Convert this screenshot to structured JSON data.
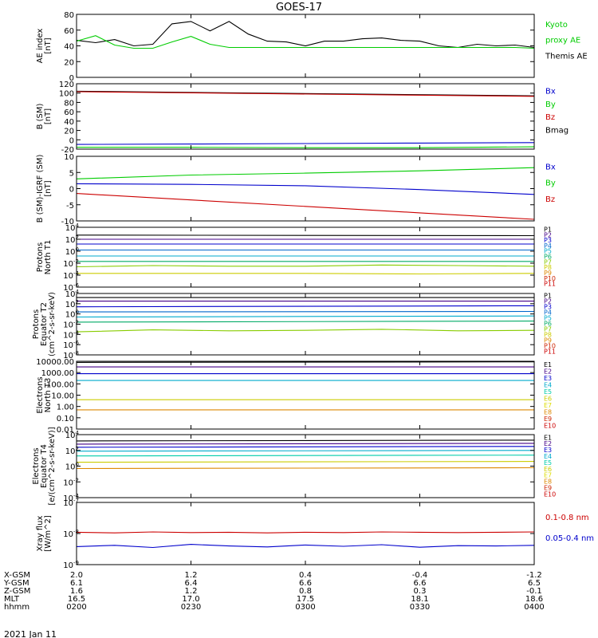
{
  "title": "GOES-17",
  "date_label": "2021 Jan 11",
  "ephemeris": {
    "row_labels": [
      "X-GSM",
      "Y-GSM",
      "Z-GSM",
      "MLT",
      "hhmm"
    ],
    "columns": [
      {
        "time": "02:00",
        "values": [
          "2.0",
          "6.1",
          "1.6",
          "16.5",
          "0200"
        ]
      },
      {
        "time": "02:30",
        "values": [
          "1.2",
          "6.4",
          "1.2",
          "17.0",
          "0230"
        ]
      },
      {
        "time": "03:00",
        "values": [
          "0.4",
          "6.6",
          "0.8",
          "17.5",
          "0300"
        ]
      },
      {
        "time": "03:30",
        "values": [
          "-0.4",
          "6.6",
          "0.3",
          "18.1",
          "0330"
        ]
      },
      {
        "time": "04:00",
        "values": [
          "-1.2",
          "6.5",
          "-0.1",
          "18.6",
          "0400"
        ]
      }
    ]
  },
  "colors": {
    "black": "#000000",
    "green": "#00cc00",
    "blue": "#0000cc",
    "red": "#cc0000",
    "orange": "#dd8800",
    "yellow": "#cccc00"
  },
  "chart_data": [
    {
      "type": "line",
      "ylabel": [
        "AE index",
        "[nT]"
      ],
      "ylim": [
        0,
        80
      ],
      "yticks": [
        "0",
        "20",
        "40",
        "60",
        "80"
      ],
      "x_range": [
        "02:00",
        "04:00"
      ],
      "legend": [
        {
          "name": "Kyoto",
          "color": "#00cc00"
        },
        {
          "name": "proxy AE",
          "color": "#00cc00"
        },
        {
          "name": "Themis AE",
          "color": "#000000"
        }
      ],
      "series": [
        {
          "name": "Themis AE",
          "color": "#000000",
          "t": [
            "02:00",
            "02:05",
            "02:10",
            "02:15",
            "02:20",
            "02:25",
            "02:30",
            "02:35",
            "02:40",
            "02:45",
            "02:50",
            "02:55",
            "03:00",
            "03:05",
            "03:10",
            "03:15",
            "03:20",
            "03:25",
            "03:30",
            "03:35",
            "03:40",
            "03:45",
            "03:50",
            "03:55",
            "04:00"
          ],
          "y": [
            47,
            44,
            48,
            40,
            42,
            68,
            71,
            59,
            71,
            55,
            46,
            45,
            40,
            46,
            46,
            49,
            50,
            47,
            46,
            40,
            38,
            42,
            40,
            41,
            38
          ]
        },
        {
          "name": "Kyoto proxy AE",
          "color": "#00cc00",
          "t": [
            "02:00",
            "02:05",
            "02:10",
            "02:15",
            "02:20",
            "02:25",
            "02:30",
            "02:35",
            "02:40",
            "02:45",
            "02:50",
            "02:55",
            "03:00",
            "03:05",
            "03:10",
            "03:15",
            "03:20",
            "03:25",
            "03:30",
            "03:35",
            "03:40",
            "03:45",
            "03:50",
            "03:55",
            "04:00"
          ],
          "y": [
            46,
            53,
            41,
            37,
            37,
            45,
            52,
            42,
            38,
            38,
            38,
            38,
            38,
            38,
            38,
            38,
            38,
            38,
            38,
            38,
            38,
            38,
            38,
            38,
            37
          ]
        }
      ]
    },
    {
      "type": "line",
      "ylabel": [
        "B (SM)",
        "[nT]"
      ],
      "ylim": [
        -20,
        120
      ],
      "yticks": [
        "-20",
        "0",
        "20",
        "40",
        "60",
        "80",
        "100",
        "120"
      ],
      "legend": [
        {
          "name": "Bx",
          "color": "#0000cc"
        },
        {
          "name": "By",
          "color": "#00cc00"
        },
        {
          "name": "Bz",
          "color": "#cc0000"
        },
        {
          "name": "Bmag",
          "color": "#000000"
        }
      ],
      "series": [
        {
          "name": "Bmag",
          "color": "#000000",
          "t": [
            "02:00",
            "04:00"
          ],
          "y": [
            104,
            94
          ]
        },
        {
          "name": "Bz",
          "color": "#cc0000",
          "t": [
            "02:00",
            "04:00"
          ],
          "y": [
            103,
            93
          ]
        },
        {
          "name": "Bx",
          "color": "#0000cc",
          "t": [
            "02:00",
            "02:30",
            "03:00",
            "03:30",
            "04:00"
          ],
          "y": [
            -10,
            -9,
            -8,
            -7,
            -6
          ]
        },
        {
          "name": "By",
          "color": "#00cc00",
          "t": [
            "02:00",
            "02:30",
            "03:00",
            "03:30",
            "04:00"
          ],
          "y": [
            -16,
            -16,
            -17,
            -17,
            -15
          ]
        }
      ]
    },
    {
      "type": "line",
      "ylabel": [
        "B (SM)-IGRF (SM)",
        "[nT]"
      ],
      "ylim": [
        -10,
        10
      ],
      "yticks": [
        "-10",
        "-5",
        "0",
        "5",
        "10"
      ],
      "legend": [
        {
          "name": "Bx",
          "color": "#0000cc"
        },
        {
          "name": "By",
          "color": "#00cc00"
        },
        {
          "name": "Bz",
          "color": "#cc0000"
        }
      ],
      "series": [
        {
          "name": "By",
          "color": "#00cc00",
          "t": [
            "02:00",
            "02:30",
            "03:00",
            "03:30",
            "04:00"
          ],
          "y": [
            3,
            4.2,
            4.8,
            5.5,
            6.5
          ]
        },
        {
          "name": "Bx",
          "color": "#0000cc",
          "t": [
            "02:00",
            "02:30",
            "03:00",
            "03:30",
            "04:00"
          ],
          "y": [
            1.5,
            1.3,
            0.9,
            -0.3,
            -1.8
          ]
        },
        {
          "name": "Bz",
          "color": "#cc0000",
          "t": [
            "02:00",
            "02:30",
            "03:00",
            "03:30",
            "04:00"
          ],
          "y": [
            -1.5,
            -3.5,
            -5.5,
            -7.5,
            -9.5
          ]
        }
      ]
    },
    {
      "type": "line",
      "ylabel": [
        "Protons",
        "North T1"
      ],
      "yscale": "log",
      "ylim": [
        -6,
        4
      ],
      "yticks": [
        "10^-6",
        "10^-4",
        "10^-2",
        "10^0",
        "10^2",
        "10^4"
      ],
      "legend": [
        {
          "name": "P1",
          "color": "#000000"
        },
        {
          "name": "P2",
          "color": "#440088"
        },
        {
          "name": "P3",
          "color": "#0000cc"
        },
        {
          "name": "P4",
          "color": "#0066cc"
        },
        {
          "name": "P5",
          "color": "#00aacc"
        },
        {
          "name": "P6",
          "color": "#00aa66"
        },
        {
          "name": "P7",
          "color": "#88cc00"
        },
        {
          "name": "P8",
          "color": "#cccc00"
        },
        {
          "name": "P9",
          "color": "#dd8800"
        },
        {
          "name": "P10",
          "color": "#cc2200"
        },
        {
          "name": "P11",
          "color": "#cc0000"
        }
      ],
      "series": [
        {
          "name": "P1",
          "color": "#000000",
          "t": [
            "02:00",
            "04:00"
          ],
          "y": [
            2.7,
            2.6
          ]
        },
        {
          "name": "P2",
          "color": "#440088",
          "t": [
            "02:00",
            "04:00"
          ],
          "y": [
            2.0,
            2.0
          ]
        },
        {
          "name": "P3",
          "color": "#0000cc",
          "t": [
            "02:00",
            "04:00"
          ],
          "y": [
            1.2,
            1.2
          ]
        },
        {
          "name": "P4",
          "color": "#0066cc",
          "t": [
            "02:00",
            "04:00"
          ],
          "y": [
            0.2,
            0.2
          ]
        },
        {
          "name": "P5",
          "color": "#00aacc",
          "t": [
            "02:00",
            "04:00"
          ],
          "y": [
            -0.8,
            -0.8
          ]
        },
        {
          "name": "P6",
          "color": "#00aa66",
          "t": [
            "02:00",
            "04:00"
          ],
          "y": [
            -1.7,
            -1.7
          ]
        },
        {
          "name": "P7",
          "color": "#88cc00",
          "t": [
            "02:00",
            "02:20",
            "02:40",
            "03:00",
            "03:20",
            "03:40",
            "04:00"
          ],
          "y": [
            -2.6,
            -2.4,
            -2.5,
            -2.5,
            -2.3,
            -2.4,
            -2.5
          ]
        },
        {
          "name": "P8",
          "color": "#cccc00",
          "t": [
            "02:00",
            "02:30",
            "03:00",
            "03:30",
            "04:00"
          ],
          "y": [
            -3.7,
            -3.7,
            -3.7,
            -3.8,
            -3.7
          ]
        }
      ]
    },
    {
      "type": "line",
      "ylabel": [
        "Protons",
        "Equator T2",
        "(cm^2-s-sr-keV)"
      ],
      "yscale": "log",
      "ylim": [
        -8,
        4
      ],
      "yticks": [
        "10^-8",
        "10^-6",
        "10^-4",
        "10^-2",
        "10^0",
        "10^2",
        "10^4"
      ],
      "legend": [
        {
          "name": "P1",
          "color": "#000000"
        },
        {
          "name": "P2",
          "color": "#440088"
        },
        {
          "name": "P3",
          "color": "#0000cc"
        },
        {
          "name": "P4",
          "color": "#0066cc"
        },
        {
          "name": "P5",
          "color": "#00aacc"
        },
        {
          "name": "P6",
          "color": "#00aa66"
        },
        {
          "name": "P7",
          "color": "#88cc00"
        },
        {
          "name": "P8",
          "color": "#cccc00"
        },
        {
          "name": "P9",
          "color": "#dd8800"
        },
        {
          "name": "P10",
          "color": "#cc2200"
        },
        {
          "name": "P11",
          "color": "#cc0000"
        }
      ],
      "series": [
        {
          "name": "P1",
          "color": "#000000",
          "t": [
            "02:00",
            "04:00"
          ],
          "y": [
            3.2,
            3.2
          ]
        },
        {
          "name": "P2",
          "color": "#440088",
          "t": [
            "02:00",
            "04:00"
          ],
          "y": [
            2.5,
            2.5
          ]
        },
        {
          "name": "P3",
          "color": "#0000cc",
          "t": [
            "02:00",
            "04:00"
          ],
          "y": [
            1.4,
            1.6
          ]
        },
        {
          "name": "P4",
          "color": "#0066cc",
          "t": [
            "02:00",
            "04:00"
          ],
          "y": [
            0.4,
            0.5
          ]
        },
        {
          "name": "P5",
          "color": "#00aacc",
          "t": [
            "02:00",
            "04:00"
          ],
          "y": [
            -0.6,
            -0.4
          ]
        },
        {
          "name": "P6",
          "color": "#00aa66",
          "t": [
            "02:00",
            "04:00"
          ],
          "y": [
            -1.6,
            -1.4
          ]
        },
        {
          "name": "P7",
          "color": "#88cc00",
          "t": [
            "02:00",
            "02:20",
            "02:40",
            "03:00",
            "03:20",
            "03:40",
            "04:00"
          ],
          "y": [
            -3.5,
            -3.1,
            -3.3,
            -3.2,
            -3.0,
            -3.3,
            -3.2
          ]
        }
      ]
    },
    {
      "type": "line",
      "ylabel": [
        "Electrons",
        "North T3"
      ],
      "yscale": "log",
      "ylim": [
        -2,
        4
      ],
      "yticks": [
        "0.01",
        "0.10",
        "1.00",
        "10.00",
        "100.00",
        "1000.00",
        "10000.00"
      ],
      "legend": [
        {
          "name": "E1",
          "color": "#000000"
        },
        {
          "name": "E2",
          "color": "#440088"
        },
        {
          "name": "E3",
          "color": "#0000cc"
        },
        {
          "name": "E4",
          "color": "#00aacc"
        },
        {
          "name": "E5",
          "color": "#00ccaa"
        },
        {
          "name": "E6",
          "color": "#cccc00"
        },
        {
          "name": "E7",
          "color": "#dddd00"
        },
        {
          "name": "E8",
          "color": "#dd8800"
        },
        {
          "name": "E9",
          "color": "#cc2200"
        },
        {
          "name": "E10",
          "color": "#cc0000"
        }
      ],
      "series": [
        {
          "name": "E1",
          "color": "#000000",
          "t": [
            "02:00",
            "04:00"
          ],
          "y": [
            3.9,
            3.95
          ]
        },
        {
          "name": "E2",
          "color": "#440088",
          "t": [
            "02:00",
            "04:00"
          ],
          "y": [
            3.5,
            3.5
          ]
        },
        {
          "name": "E3",
          "color": "#0000cc",
          "t": [
            "02:00",
            "04:00"
          ],
          "y": [
            2.9,
            2.9
          ]
        },
        {
          "name": "E4",
          "color": "#00aacc",
          "t": [
            "02:00",
            "04:00"
          ],
          "y": [
            2.3,
            2.3
          ]
        },
        {
          "name": "E6",
          "color": "#cccc00",
          "t": [
            "02:00",
            "04:00"
          ],
          "y": [
            0.6,
            0.6
          ]
        },
        {
          "name": "E8",
          "color": "#dd8800",
          "t": [
            "02:00",
            "04:00"
          ],
          "y": [
            -0.3,
            -0.3
          ]
        }
      ]
    },
    {
      "type": "line",
      "ylabel": [
        "Electrons",
        "Equator T4",
        "[e/(cm^2-s-sr-keV)]"
      ],
      "yscale": "log",
      "ylim": [
        -4,
        4
      ],
      "yticks": [
        "10^-4",
        "10^-2",
        "10^0",
        "10^2",
        "10^4"
      ],
      "legend": [
        {
          "name": "E1",
          "color": "#000000"
        },
        {
          "name": "E2",
          "color": "#440088"
        },
        {
          "name": "E3",
          "color": "#0000cc"
        },
        {
          "name": "E4",
          "color": "#00aacc"
        },
        {
          "name": "E5",
          "color": "#00ccaa"
        },
        {
          "name": "E6",
          "color": "#cccc00"
        },
        {
          "name": "E7",
          "color": "#dddd00"
        },
        {
          "name": "E8",
          "color": "#dd8800"
        },
        {
          "name": "E9",
          "color": "#cc2200"
        },
        {
          "name": "E10",
          "color": "#cc0000"
        }
      ],
      "series": [
        {
          "name": "E1",
          "color": "#000000",
          "t": [
            "02:00",
            "04:00"
          ],
          "y": [
            3.2,
            3.3
          ]
        },
        {
          "name": "E2",
          "color": "#440088",
          "t": [
            "02:00",
            "04:00"
          ],
          "y": [
            2.8,
            2.9
          ]
        },
        {
          "name": "E3",
          "color": "#0000cc",
          "t": [
            "02:00",
            "04:00"
          ],
          "y": [
            2.4,
            2.5
          ]
        },
        {
          "name": "E4",
          "color": "#00aacc",
          "t": [
            "02:00",
            "04:00"
          ],
          "y": [
            1.9,
            2.0
          ]
        },
        {
          "name": "E5",
          "color": "#00ccaa",
          "t": [
            "02:00",
            "04:00"
          ],
          "y": [
            1.3,
            1.4
          ]
        },
        {
          "name": "E6",
          "color": "#cccc00",
          "t": [
            "02:00",
            "04:00"
          ],
          "y": [
            0.5,
            0.6
          ]
        },
        {
          "name": "E8",
          "color": "#dd8800",
          "t": [
            "02:00",
            "04:00"
          ],
          "y": [
            -0.3,
            -0.2
          ]
        }
      ]
    },
    {
      "type": "line",
      "ylabel": [
        "Xray flux",
        "[W/m^2]"
      ],
      "yscale": "log",
      "ylim": [
        -9,
        -7
      ],
      "yticks": [
        "10^-9",
        "10^-8",
        "10^-7"
      ],
      "legend": [
        {
          "name": "0.1-0.8 nm",
          "color": "#cc0000"
        },
        {
          "name": "0.05-0.4 nm",
          "color": "#0000cc"
        }
      ],
      "series": [
        {
          "name": "0.1-0.8 nm",
          "color": "#cc0000",
          "t": [
            "02:00",
            "02:10",
            "02:20",
            "02:30",
            "02:40",
            "02:50",
            "03:00",
            "03:10",
            "03:20",
            "03:30",
            "03:40",
            "03:50",
            "04:00"
          ],
          "y": [
            -7.96,
            -7.98,
            -7.95,
            -7.97,
            -7.96,
            -7.98,
            -7.96,
            -7.97,
            -7.95,
            -7.96,
            -7.97,
            -7.96,
            -7.95
          ]
        },
        {
          "name": "0.05-0.4 nm",
          "color": "#0000cc",
          "t": [
            "02:00",
            "02:10",
            "02:20",
            "02:30",
            "02:40",
            "02:50",
            "03:00",
            "03:10",
            "03:20",
            "03:30",
            "03:40",
            "03:50",
            "04:00"
          ],
          "y": [
            -8.42,
            -8.38,
            -8.45,
            -8.35,
            -8.4,
            -8.43,
            -8.37,
            -8.41,
            -8.36,
            -8.44,
            -8.39,
            -8.4,
            -8.38
          ]
        }
      ]
    }
  ]
}
